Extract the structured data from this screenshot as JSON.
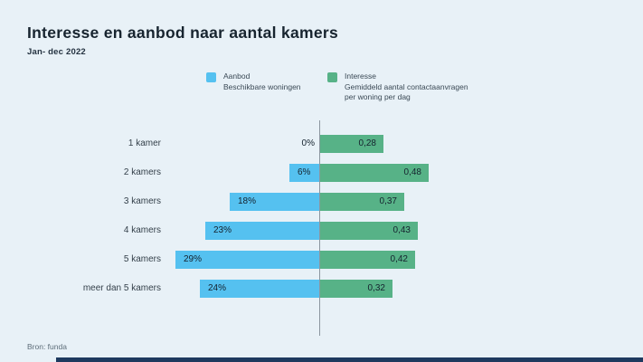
{
  "title": "Interesse en aanbod naar aantal kamers",
  "subtitle": "Jan- dec 2022",
  "source": "Bron: funda",
  "colors": {
    "background": "#e8f1f7",
    "aanbod": "#55c1f0",
    "interesse": "#57b287",
    "axis": "#8b969f",
    "bottom_bar": "#1e3a5f"
  },
  "legend": [
    {
      "name": "Aanbod",
      "description": "Beschikbare woningen",
      "color": "#55c1f0"
    },
    {
      "name": "Interesse",
      "description": "Gemiddeld aantal contactaanvragen per woning per dag",
      "color": "#57b287"
    }
  ],
  "chart_data": {
    "type": "bar",
    "variant": "diverging-horizontal",
    "title": "Interesse en aanbod naar aantal kamers",
    "subtitle": "Jan- dec 2022",
    "categories": [
      "1 kamer",
      "2 kamers",
      "3 kamers",
      "4 kamers",
      "5 kamers",
      "meer dan 5 kamers"
    ],
    "series": [
      {
        "name": "Aanbod",
        "description": "Beschikbare woningen",
        "direction": "left",
        "unit": "%",
        "values": [
          0,
          6,
          18,
          23,
          29,
          24
        ],
        "labels": [
          "0%",
          "6%",
          "18%",
          "23%",
          "29%",
          "24%"
        ],
        "color": "#55c1f0"
      },
      {
        "name": "Interesse",
        "description": "Gemiddeld aantal contactaanvragen per woning per dag",
        "direction": "right",
        "unit": "per woning per dag",
        "values": [
          0.28,
          0.48,
          0.37,
          0.43,
          0.42,
          0.32
        ],
        "labels": [
          "0,28",
          "0,48",
          "0,37",
          "0,43",
          "0,42",
          "0,32"
        ],
        "color": "#57b287"
      }
    ],
    "legend_position": "top",
    "grid": false,
    "axis": "center-vertical"
  }
}
